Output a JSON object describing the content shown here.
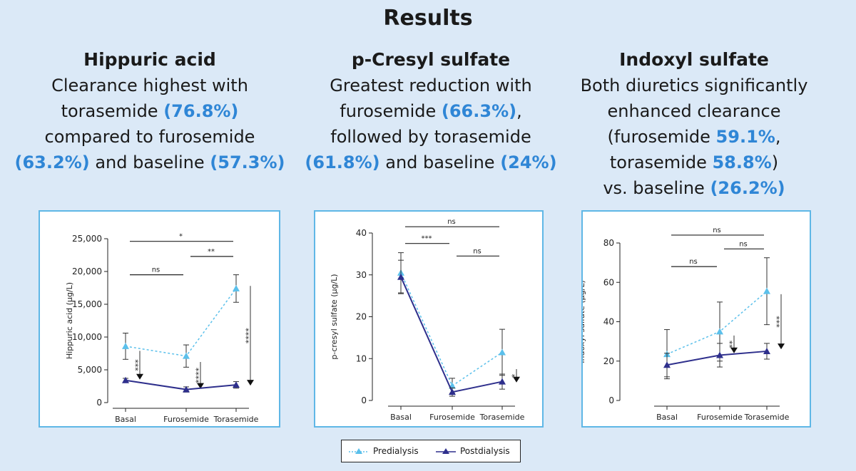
{
  "title": "Results",
  "panels": [
    {
      "heading": "Hippuric acid",
      "lines": [
        [
          {
            "t": "Clearance highest with"
          }
        ],
        [
          {
            "t": "torasemide "
          },
          {
            "t": "(76.8%)",
            "b": 1
          }
        ],
        [
          {
            "t": "compared to furosemide"
          }
        ],
        [
          {
            "t": "(63.2%)",
            "b": 1
          },
          {
            "t": " and baseline "
          },
          {
            "t": "(57.3%)",
            "b": 1
          }
        ]
      ]
    },
    {
      "heading": "p-Cresyl sulfate",
      "lines": [
        [
          {
            "t": "Greatest reduction with"
          }
        ],
        [
          {
            "t": "furosemide "
          },
          {
            "t": "(66.3%)",
            "b": 1
          },
          {
            "t": ","
          }
        ],
        [
          {
            "t": "followed by torasemide"
          }
        ],
        [
          {
            "t": "(61.8%)",
            "b": 1
          },
          {
            "t": " and baseline "
          },
          {
            "t": "(24%)",
            "b": 1
          }
        ]
      ]
    },
    {
      "heading": "Indoxyl sulfate",
      "lines": [
        [
          {
            "t": "Both diuretics significantly"
          }
        ],
        [
          {
            "t": "enhanced clearance"
          }
        ],
        [
          {
            "t": "(furosemide "
          },
          {
            "t": "59.1%",
            "b": 1
          },
          {
            "t": ","
          }
        ],
        [
          {
            "t": "torasemide "
          },
          {
            "t": "58.8%",
            "b": 1
          },
          {
            "t": ")"
          }
        ],
        [
          {
            "t": "vs. baseline "
          },
          {
            "t": "(26.2%)",
            "b": 1
          }
        ]
      ]
    }
  ],
  "legend": {
    "predialysis": "Predialysis",
    "postdialysis": "Postdialysis"
  },
  "colors": {
    "predialysis": "#5bc0eb",
    "postdialysis": "#2e2f8c",
    "accent": "#2f86d6",
    "border": "#5fb7e6"
  },
  "chart_data": [
    {
      "type": "line",
      "categories": [
        "Basal",
        "Furosemide",
        "Torasemide"
      ],
      "ylabel": "Hippuric acid (µg/L)",
      "ylim": [
        0,
        25000
      ],
      "yticks": [
        "0",
        "5,000",
        "10,000",
        "15,000",
        "20,000",
        "25,000"
      ],
      "series": [
        {
          "name": "Predialysis",
          "values": [
            8600,
            7100,
            17400
          ],
          "err": [
            2000,
            1700,
            2100
          ]
        },
        {
          "name": "Postdialysis",
          "values": [
            3400,
            2000,
            2700
          ],
          "err": [
            300,
            400,
            500
          ]
        }
      ],
      "brackets": [
        {
          "from": 0,
          "to": 2,
          "label": "*",
          "level": 24600
        },
        {
          "from": 1,
          "to": 2,
          "label": "**",
          "level": 22300
        },
        {
          "from": 0,
          "to": 1,
          "label": "ns",
          "level": 19500
        }
      ],
      "arrows": [
        {
          "cat": 0,
          "from": 7900,
          "to": 3500,
          "label": "***"
        },
        {
          "cat": 1,
          "from": 6200,
          "to": 2100,
          "label": "****"
        },
        {
          "cat": 2,
          "from": 17800,
          "to": 2600,
          "label": "****"
        }
      ]
    },
    {
      "type": "line",
      "categories": [
        "Basal",
        "Furosemide",
        "Torasemide"
      ],
      "ylabel": "p-cresyl sulfate (µg/L)",
      "ylim": [
        0,
        40
      ],
      "yticks": [
        "0",
        "10",
        "20",
        "30",
        "40"
      ],
      "series": [
        {
          "name": "Predialysis",
          "values": [
            30.5,
            3.5,
            11.5
          ],
          "err": [
            4.8,
            1.8,
            5.5
          ]
        },
        {
          "name": "Postdialysis",
          "values": [
            29.5,
            2.0,
            4.5
          ],
          "err": [
            4.0,
            1.0,
            1.8
          ]
        }
      ],
      "brackets": [
        {
          "from": 0,
          "to": 2,
          "label": "ns",
          "level": 41.5
        },
        {
          "from": 0,
          "to": 1,
          "label": "***",
          "level": 37.5
        },
        {
          "from": 1,
          "to": 2,
          "label": "ns",
          "level": 34.5
        }
      ],
      "arrows": [
        {
          "cat": 2,
          "from": 7.5,
          "to": 4.3,
          "label": "*"
        }
      ]
    },
    {
      "type": "line",
      "categories": [
        "Basal",
        "Furosemide",
        "Torasemide"
      ],
      "ylabel": "Indoxyl sulfate (µg/L)",
      "ylim": [
        0,
        80
      ],
      "yticks": [
        "0",
        "20",
        "40",
        "60",
        "80"
      ],
      "series": [
        {
          "name": "Predialysis",
          "values": [
            23.5,
            35,
            55.5
          ],
          "err": [
            12.5,
            15,
            17
          ]
        },
        {
          "name": "Postdialysis",
          "values": [
            18,
            23,
            25
          ],
          "err": [
            6,
            6,
            4
          ]
        }
      ],
      "brackets": [
        {
          "from": 0,
          "to": 2,
          "label": "ns",
          "level": 84
        },
        {
          "from": 1,
          "to": 2,
          "label": "ns",
          "level": 77
        },
        {
          "from": 0,
          "to": 1,
          "label": "ns",
          "level": 68
        }
      ],
      "arrows": [
        {
          "cat": 1,
          "from": 33,
          "to": 24,
          "label": "**"
        },
        {
          "cat": 2,
          "from": 54,
          "to": 26,
          "label": "***"
        }
      ]
    }
  ]
}
